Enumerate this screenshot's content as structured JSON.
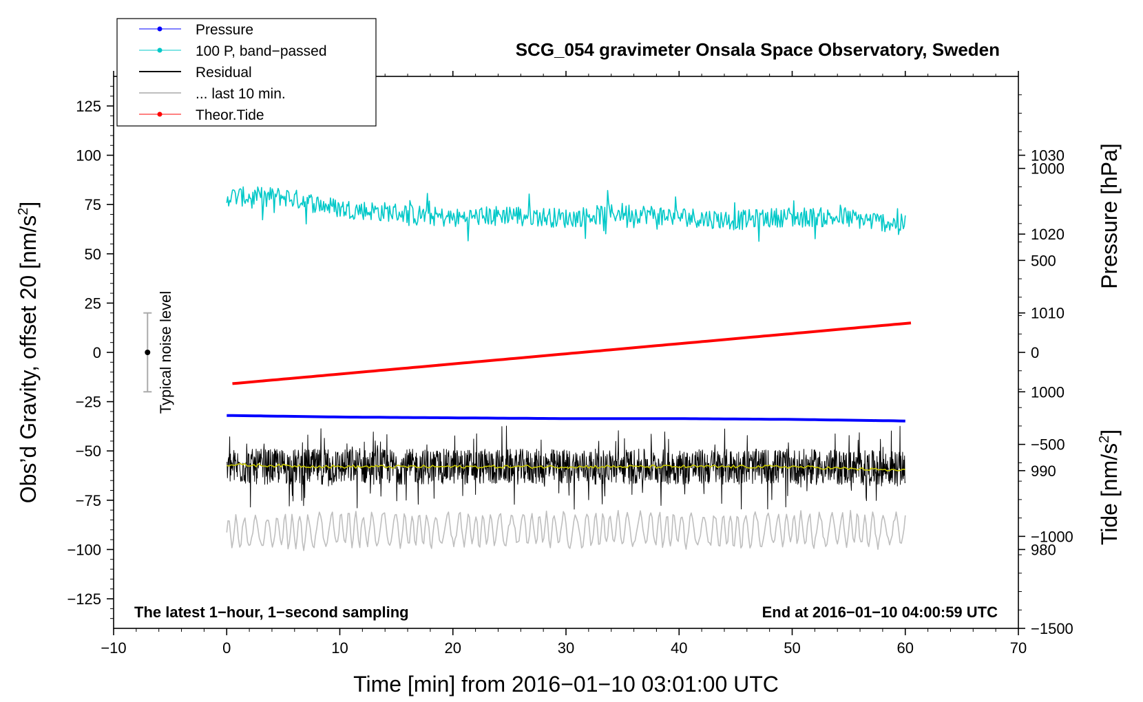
{
  "chart_data": {
    "type": "line",
    "title": "SCG_054 gravimeter Onsala Space Observatory, Sweden",
    "xlabel": "Time [min] from 2016−01−10 03:01:00 UTC",
    "ylabel_left": "Obs’d Gravity, offset 20 [nm/s",
    "ylabel_left_sup": "2",
    "ylabel_left_end": "]",
    "ylabel_right_pressure": "Pressure [hPa]",
    "ylabel_right_tide": "Tide [nm/s",
    "ylabel_right_tide_sup": "2",
    "ylabel_right_tide_end": "]",
    "xlim": [
      -10,
      70
    ],
    "ylim": [
      -140,
      140
    ],
    "pressure_lim": [
      970,
      1040
    ],
    "tide_lim": [
      -1500,
      1500
    ],
    "x_ticks": [
      "−10",
      "0",
      "10",
      "20",
      "30",
      "40",
      "50",
      "60",
      "70"
    ],
    "y_ticks": [
      "125",
      "100",
      "75",
      "50",
      "25",
      "0",
      "−25",
      "−50",
      "−75",
      "−100",
      "−125"
    ],
    "pressure_ticks": [
      "1030",
      "1020",
      "1010",
      "1000",
      "990",
      "980"
    ],
    "tide_ticks": [
      "1000",
      "500",
      "0",
      "−500",
      "−1000",
      "−1500"
    ],
    "note_left": "The latest 1−hour, 1−second sampling",
    "note_right": "End at 2016−01−10 04:00:59 UTC",
    "noise_label": "Typical noise level",
    "noise_bar": {
      "x": -7,
      "center": 0,
      "half_range": 20
    },
    "legend": [
      {
        "label": "Pressure",
        "color": "#0000ff",
        "marker": true
      },
      {
        "label": "100 P, band−passed",
        "color": "#00c8c8",
        "marker": true
      },
      {
        "label": "Residual",
        "color": "#000000",
        "marker": false
      },
      {
        "label": "... last 10 min.",
        "color": "#bebebe",
        "marker": false
      },
      {
        "label": "Theor.Tide",
        "color": "#ff0000",
        "marker": true
      }
    ],
    "series": [
      {
        "name": "Pressure",
        "axis": "pressure",
        "color": "#0000ff",
        "x": [
          0,
          10,
          20,
          30,
          40,
          50,
          60
        ],
        "values": [
          997.0,
          996.8,
          996.7,
          996.6,
          996.6,
          996.5,
          996.3
        ]
      },
      {
        "name": "100 P, band−passed",
        "axis": "gravity",
        "color": "#00c8c8",
        "x": [
          0,
          5,
          10,
          15,
          20,
          25,
          30,
          35,
          40,
          45,
          50,
          55,
          60
        ],
        "values": [
          79,
          79,
          73,
          71,
          68,
          70,
          68,
          71,
          69,
          67,
          69,
          68,
          65
        ],
        "noise_amplitude": 5
      },
      {
        "name": "Residual",
        "axis": "gravity",
        "color": "#000000",
        "x": [
          0,
          10,
          20,
          30,
          40,
          50,
          60
        ],
        "values": [
          -58,
          -58,
          -58,
          -58,
          -58,
          -58,
          -59
        ],
        "noise_amplitude": 9
      },
      {
        "name": "Residual (smoothed)",
        "axis": "gravity",
        "color": "#c8c800",
        "x": [
          0,
          10,
          20,
          30,
          40,
          50,
          60
        ],
        "values": [
          -57,
          -58,
          -58,
          -58,
          -58,
          -58,
          -60
        ]
      },
      {
        "name": "... last 10 min.",
        "axis": "gravity",
        "color": "#bebebe",
        "x": [
          0,
          10,
          20,
          30,
          40,
          50,
          60
        ],
        "values": [
          -92,
          -90,
          -90,
          -90,
          -90,
          -90,
          -90
        ],
        "noise_amplitude": 8
      },
      {
        "name": "Theor.Tide",
        "axis": "tide",
        "color": "#ff0000",
        "x": [
          0.5,
          60.5
        ],
        "values": [
          -170,
          160
        ]
      }
    ]
  }
}
